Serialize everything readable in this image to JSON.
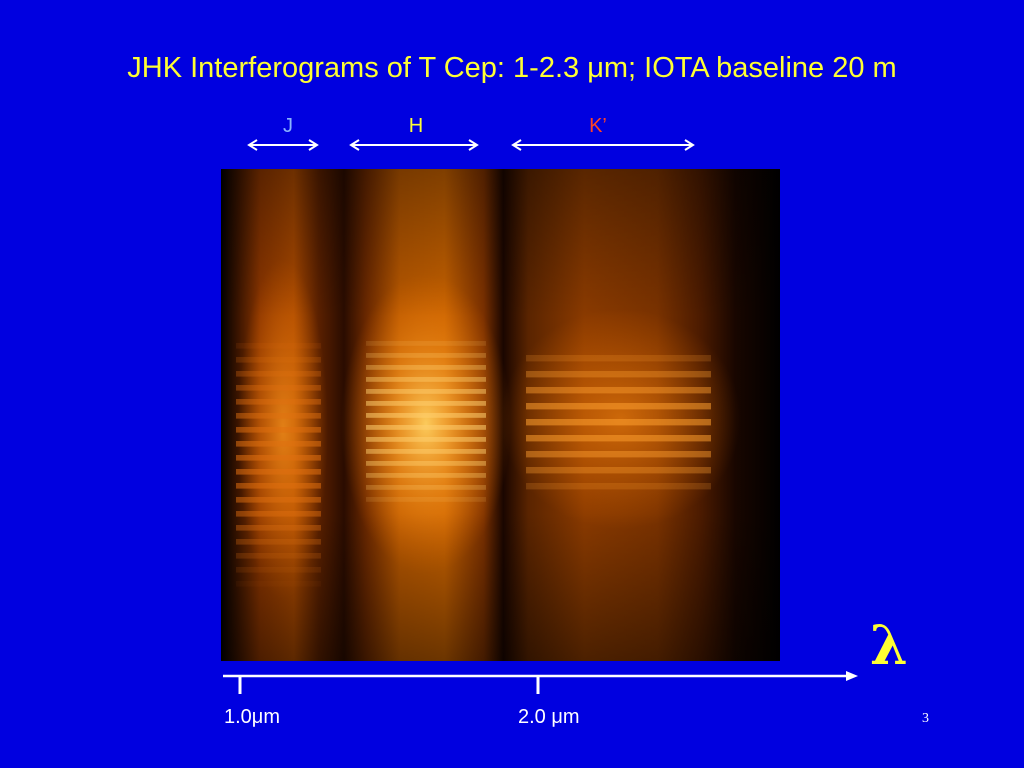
{
  "slide": {
    "title": "JHK Interferograms of T Cep: 1-2.3 μm; IOTA baseline 20 m",
    "page_number": "3"
  },
  "bands": [
    {
      "label": "J",
      "color": "#8ab4ff"
    },
    {
      "label": "H",
      "color": "#ffff33"
    },
    {
      "label": "K’",
      "color": "#ff4422"
    }
  ],
  "axis": {
    "symbol": "λ",
    "tick_labels": [
      "1.0μm",
      "2.0 μm"
    ]
  },
  "colors": {
    "background": "#0000e0",
    "title": "#ffff33",
    "axis": "#ffffff",
    "fringe_hot": "#ffcc55",
    "fringe_mid": "#cc5a00"
  }
}
